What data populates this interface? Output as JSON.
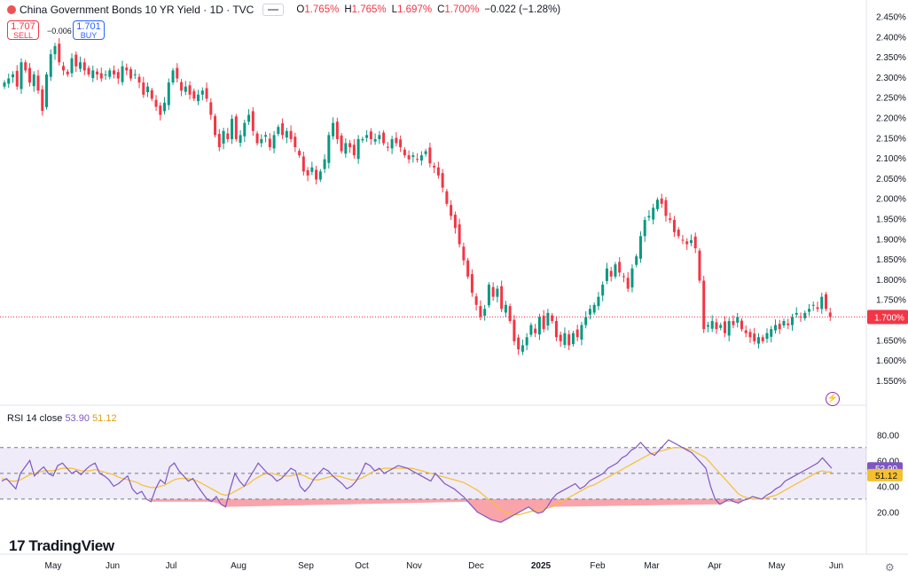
{
  "header": {
    "title": "China Government Bonds 10 YR Yield · 1D · TVC",
    "o_label": "O",
    "o": "1.765%",
    "h_label": "H",
    "h": "1.765%",
    "l_label": "L",
    "l": "1.697%",
    "c_label": "C",
    "c": "1.700%",
    "change": "−0.022 (−1.28%)"
  },
  "trade": {
    "sell_price": "1.707",
    "sell_label": "SELL",
    "buy_price": "1.701",
    "buy_label": "BUY",
    "spread": "−0.006"
  },
  "rsi_header": {
    "label": "RSI 14 close",
    "rsi": "53.90",
    "ma": "51.12"
  },
  "brand": "TradingView",
  "colors": {
    "up": "#089981",
    "down": "#f23645",
    "rsi": "#7e57c2",
    "rsi_ma": "#f5c02f",
    "oversold": "#f23645",
    "price_badge": "#f23645"
  },
  "chart_data": [
    {
      "type": "candlestick",
      "title": "China Government Bonds 10 YR Yield",
      "ylim": [
        1.53,
        2.46
      ],
      "y_ticks": [
        "2.450%",
        "2.400%",
        "2.350%",
        "2.300%",
        "2.250%",
        "2.200%",
        "2.150%",
        "2.100%",
        "2.050%",
        "2.000%",
        "1.950%",
        "1.900%",
        "1.850%",
        "1.800%",
        "1.750%",
        "1.700%",
        "1.650%",
        "1.600%",
        "1.550%"
      ],
      "x_ticks": [
        "May",
        "Jun",
        "Jul",
        "Aug",
        "Sep",
        "Oct",
        "Nov",
        "Dec",
        "2025",
        "Feb",
        "Mar",
        "Apr",
        "May",
        "Jun"
      ],
      "last_value_label": "1.700%",
      "series": [
        {
          "name": "",
          "close": [
            2.28,
            2.29,
            2.3,
            2.27,
            2.33,
            2.31,
            2.28,
            2.3,
            2.26,
            2.21,
            2.3,
            2.35,
            2.37,
            2.33,
            2.31,
            2.3,
            2.34,
            2.32,
            2.33,
            2.31,
            2.3,
            2.31,
            2.3,
            2.29,
            2.3,
            2.31,
            2.3,
            2.29,
            2.32,
            2.31,
            2.29,
            2.3,
            2.28,
            2.25,
            2.27,
            2.24,
            2.22,
            2.2,
            2.23,
            2.28,
            2.31,
            2.29,
            2.26,
            2.27,
            2.25,
            2.24,
            2.25,
            2.26,
            2.24,
            2.2,
            2.15,
            2.12,
            2.16,
            2.14,
            2.19,
            2.14,
            2.15,
            2.18,
            2.2,
            2.16,
            2.13,
            2.14,
            2.15,
            2.12,
            2.15,
            2.17,
            2.15,
            2.16,
            2.14,
            2.12,
            2.1,
            2.06,
            2.05,
            2.07,
            2.04,
            2.06,
            2.09,
            2.15,
            2.18,
            2.14,
            2.11,
            2.13,
            2.12,
            2.1,
            2.14,
            2.14,
            2.15,
            2.14,
            2.14,
            2.15,
            2.13,
            2.12,
            2.14,
            2.13,
            2.12,
            2.1,
            2.09,
            2.1,
            2.09,
            2.1,
            2.11,
            2.08,
            2.07,
            2.05,
            2.02,
            1.98,
            1.95,
            1.92,
            1.88,
            1.84,
            1.8,
            1.76,
            1.73,
            1.7,
            1.72,
            1.78,
            1.75,
            1.77,
            1.72,
            1.73,
            1.69,
            1.64,
            1.62,
            1.63,
            1.65,
            1.68,
            1.66,
            1.7,
            1.67,
            1.71,
            1.69,
            1.65,
            1.64,
            1.66,
            1.63,
            1.66,
            1.65,
            1.68,
            1.7,
            1.72,
            1.73,
            1.75,
            1.78,
            1.82,
            1.8,
            1.83,
            1.81,
            1.8,
            1.77,
            1.82,
            1.85,
            1.9,
            1.94,
            1.95,
            1.97,
            1.99,
            1.98,
            1.95,
            1.94,
            1.91,
            1.9,
            1.89,
            1.88,
            1.89,
            1.87,
            1.79,
            1.67,
            1.68,
            1.69,
            1.67,
            1.68,
            1.66,
            1.69,
            1.68,
            1.7,
            1.67,
            1.66,
            1.65,
            1.64,
            1.65,
            1.64,
            1.66,
            1.67,
            1.68,
            1.67,
            1.69,
            1.68,
            1.7,
            1.71,
            1.7,
            1.71,
            1.72,
            1.73,
            1.72,
            1.75,
            1.72,
            1.7
          ]
        }
      ]
    },
    {
      "type": "line",
      "title": "RSI 14 close",
      "ylim": [
        10,
        85
      ],
      "y_ticks": [
        "80.00",
        "60.00",
        "40.00",
        "20.00"
      ],
      "bands": [
        30,
        50,
        70
      ],
      "last_values": [
        "53.90",
        "51.12"
      ],
      "series": [
        {
          "name": "RSI",
          "values": [
            44,
            46,
            42,
            38,
            50,
            55,
            60,
            48,
            52,
            55,
            50,
            48,
            56,
            58,
            54,
            50,
            52,
            49,
            53,
            56,
            58,
            50,
            48,
            45,
            40,
            42,
            45,
            48,
            38,
            34,
            36,
            30,
            28,
            38,
            45,
            42,
            55,
            58,
            52,
            48,
            44,
            46,
            40,
            35,
            30,
            28,
            32,
            26,
            24,
            38,
            50,
            44,
            40,
            46,
            52,
            58,
            54,
            50,
            48,
            44,
            46,
            50,
            54,
            52,
            40,
            36,
            40,
            46,
            50,
            54,
            52,
            48,
            45,
            42,
            38,
            40,
            44,
            50,
            58,
            56,
            52,
            54,
            50,
            52,
            54,
            56,
            55,
            54,
            52,
            50,
            48,
            46,
            44,
            50,
            46,
            42,
            40,
            38,
            35,
            32,
            28,
            24,
            20,
            18,
            16,
            14,
            13,
            12,
            14,
            16,
            18,
            20,
            22,
            24,
            21,
            19,
            20,
            24,
            30,
            34,
            36,
            38,
            40,
            42,
            38,
            40,
            44,
            46,
            48,
            50,
            54,
            56,
            58,
            62,
            64,
            68,
            70,
            74,
            70,
            66,
            64,
            68,
            72,
            76,
            74,
            72,
            70,
            68,
            66,
            62,
            58,
            54,
            40,
            30,
            26,
            28,
            30,
            28,
            27,
            29,
            30,
            32,
            31,
            30,
            33,
            35,
            38,
            40,
            44,
            46,
            48,
            50,
            52,
            54,
            56,
            58,
            62,
            58,
            54
          ]
        },
        {
          "name": "RSI-based MA",
          "values": [
            46,
            45,
            44,
            44,
            45,
            47,
            49,
            50,
            51,
            52,
            52,
            52,
            53,
            54,
            54,
            54,
            53,
            52,
            52,
            52,
            53,
            52,
            51,
            50,
            49,
            47,
            46,
            45,
            44,
            43,
            41,
            40,
            39,
            39,
            40,
            41,
            43,
            45,
            46,
            46,
            46,
            45,
            44,
            42,
            40,
            38,
            36,
            34,
            33,
            34,
            36,
            38,
            40,
            42,
            45,
            47,
            49,
            50,
            50,
            49,
            48,
            48,
            48,
            49,
            49,
            48,
            46,
            45,
            45,
            46,
            47,
            48,
            48,
            47,
            46,
            45,
            45,
            46,
            48,
            50,
            52,
            53,
            54,
            54,
            54,
            54,
            54,
            54,
            54,
            53,
            52,
            51,
            50,
            49,
            48,
            47,
            46,
            45,
            44,
            43,
            41,
            39,
            37,
            34,
            31,
            28,
            25,
            22,
            20,
            19,
            18,
            18,
            19,
            20,
            21,
            22,
            22,
            23,
            24,
            26,
            28,
            30,
            32,
            34,
            36,
            38,
            40,
            41,
            43,
            45,
            47,
            49,
            51,
            53,
            55,
            57,
            59,
            61,
            63,
            65,
            66,
            67,
            68,
            69,
            70,
            70,
            70,
            69,
            68,
            66,
            64,
            62,
            58,
            54,
            50,
            46,
            42,
            38,
            34,
            32,
            31,
            30,
            30,
            30,
            31,
            32,
            33,
            35,
            37,
            39,
            41,
            43,
            45,
            47,
            49,
            51,
            52,
            51,
            51
          ]
        }
      ]
    }
  ]
}
